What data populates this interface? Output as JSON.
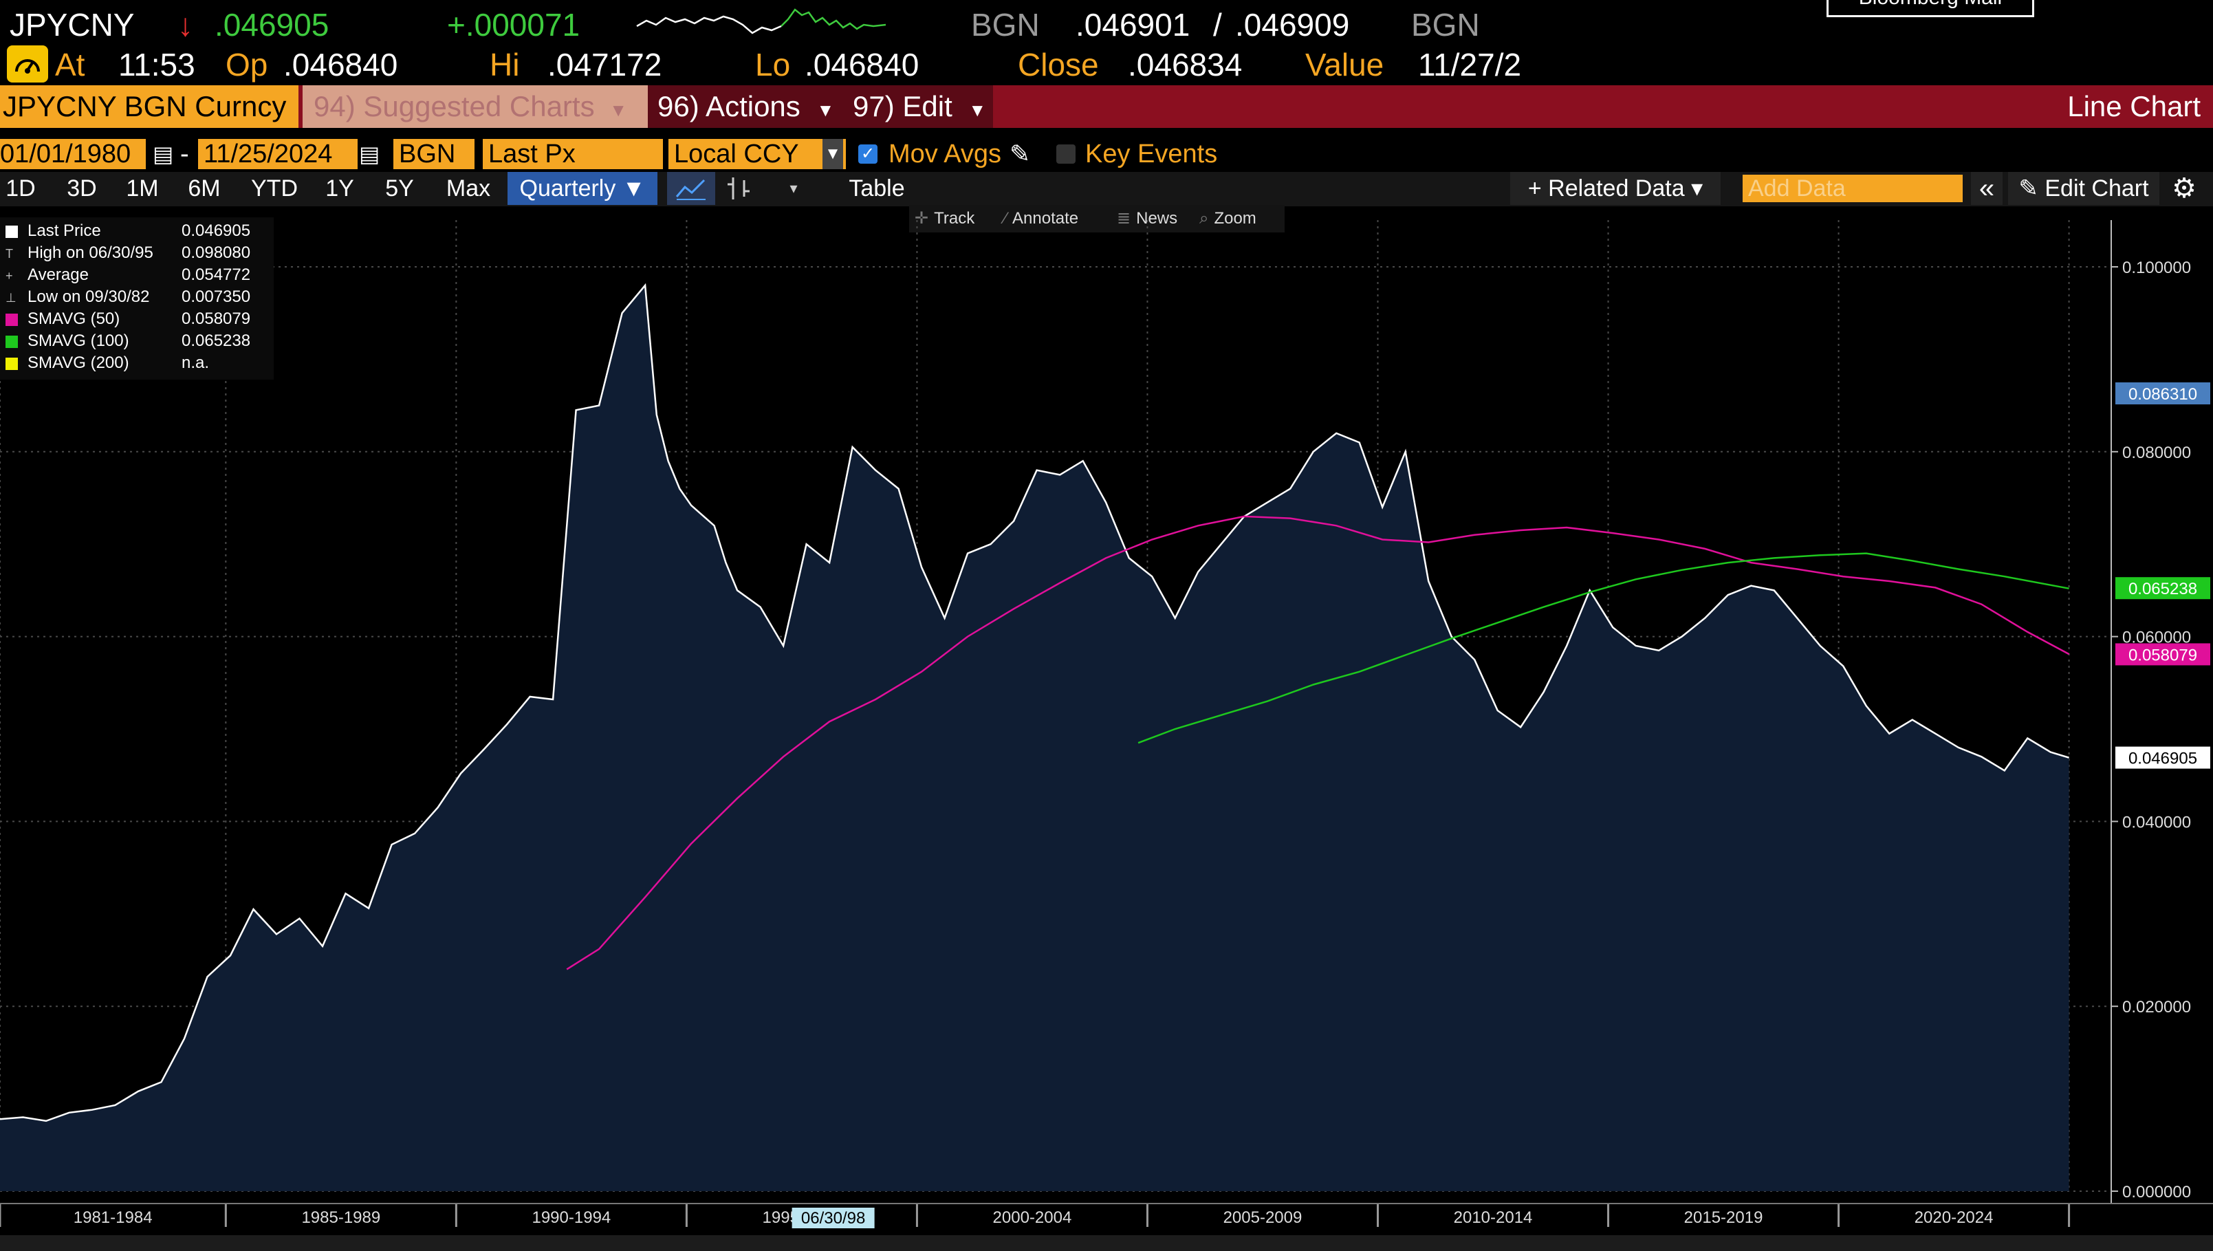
{
  "header": {
    "ticker": "JPYCNY",
    "arrow": "↓",
    "last": ".046905",
    "change": "+.000071",
    "source1": "BGN",
    "bid": ".046901",
    "slash": "/",
    "ask": ".046909",
    "source2": "BGN",
    "mail_button": "Bloomberg Mail",
    "at_label": "At",
    "time": "11:53",
    "op_label": "Op",
    "op": ".046840",
    "hi_label": "Hi",
    "hi": ".047172",
    "lo_label": "Lo",
    "lo": ".046840",
    "close_label": "Close",
    "close": ".046834",
    "value_label": "Value",
    "value": "11/27/2"
  },
  "menubar": {
    "security": "JPYCNY BGN Curncy",
    "suggested": "94) Suggested Charts",
    "actions": "96) Actions",
    "edit": "97) Edit",
    "chart_type": "Line Chart"
  },
  "settings": {
    "start_date": "01/01/1980",
    "dash": "-",
    "end_date": "11/25/2024",
    "source": "BGN",
    "field": "Last Px",
    "currency": "Local CCY",
    "mov_avgs_label": "Mov Avgs",
    "key_events_label": "Key Events"
  },
  "toolbar": {
    "periods": [
      "1D",
      "3D",
      "1M",
      "6M",
      "YTD",
      "1Y",
      "5Y",
      "Max"
    ],
    "frequency": "Quarterly ▼",
    "table": "Table",
    "related_data": "+ Related Data ▾",
    "add_data_placeholder": "Add Data",
    "edit_chart": "Edit Chart",
    "track": "Track",
    "annotate": "Annotate",
    "news": "News",
    "zoom": "Zoom"
  },
  "legend": [
    {
      "label": "Last Price",
      "value": "0.046905",
      "color": "#ffffff"
    },
    {
      "label": "High on 06/30/95",
      "value": "0.098080",
      "color": "#ffffff"
    },
    {
      "label": "Average",
      "value": "0.054772",
      "color": "#ffffff"
    },
    {
      "label": "Low on 09/30/82",
      "value": "0.007350",
      "color": "#ffffff"
    },
    {
      "label": "SMAVG (50)",
      "value": "0.058079",
      "color": "#e0109a"
    },
    {
      "label": "SMAVG (100)",
      "value": "0.065238",
      "color": "#1ec81e"
    },
    {
      "label": "SMAVG (200)",
      "value": "n.a.",
      "color": "#f0f000"
    }
  ],
  "chart_data": {
    "type": "area",
    "title": "",
    "xlabel": "",
    "ylabel": "",
    "ylim": [
      0,
      0.1
    ],
    "yticks": [
      "0.000000",
      "0.020000",
      "0.040000",
      "0.060000",
      "0.080000",
      "0.100000"
    ],
    "xticks": [
      "1981-1984",
      "1985-1989",
      "1990-1994",
      "1995-1999",
      "2000-2004",
      "2005-2009",
      "2010-2014",
      "2015-2019",
      "2020-2024"
    ],
    "xrange": [
      1980.0,
      2025.1
    ],
    "cursor_label": "06/30/98",
    "badges": [
      {
        "value": "0.086310",
        "color": "#4a7fbf"
      },
      {
        "value": "0.065238",
        "color": "#1ec81e"
      },
      {
        "value": "0.058079",
        "color": "#e0109a"
      },
      {
        "value": "0.046905",
        "color": "#ffffff"
      }
    ],
    "series": [
      {
        "name": "Last Price",
        "color": "#ffffff",
        "x": [
          1980.0,
          1980.5,
          1981.0,
          1981.5,
          1982.0,
          1982.5,
          1983.0,
          1983.5,
          1984.0,
          1984.5,
          1985.0,
          1985.5,
          1986.0,
          1986.5,
          1987.0,
          1987.5,
          1988.0,
          1988.5,
          1989.0,
          1989.5,
          1990.0,
          1990.5,
          1991.0,
          1991.5,
          1992.0,
          1992.5,
          1993.0,
          1993.5,
          1994.0,
          1994.25,
          1994.5,
          1994.75,
          1995.0,
          1995.5,
          1995.75,
          1996.0,
          1996.5,
          1997.0,
          1997.5,
          1998.0,
          1998.5,
          1999.0,
          1999.5,
          2000.0,
          2000.5,
          2001.0,
          2001.5,
          2002.0,
          2002.5,
          2003.0,
          2003.5,
          2004.0,
          2004.5,
          2005.0,
          2005.5,
          2006.0,
          2006.5,
          2007.0,
          2007.5,
          2008.0,
          2008.5,
          2009.0,
          2009.5,
          2010.0,
          2010.5,
          2011.0,
          2011.5,
          2012.0,
          2012.5,
          2013.0,
          2013.5,
          2014.0,
          2014.5,
          2015.0,
          2015.5,
          2016.0,
          2016.5,
          2017.0,
          2017.5,
          2018.0,
          2018.5,
          2019.0,
          2019.5,
          2020.0,
          2020.5,
          2021.0,
          2021.5,
          2022.0,
          2022.5,
          2023.0,
          2023.5,
          2024.0,
          2024.5,
          2024.9
        ],
        "y": [
          0.0078,
          0.008,
          0.0076,
          0.0085,
          0.0088,
          0.0093,
          0.0108,
          0.0118,
          0.0165,
          0.0232,
          0.0255,
          0.0305,
          0.0278,
          0.0295,
          0.0265,
          0.0322,
          0.0306,
          0.0375,
          0.0387,
          0.0415,
          0.0452,
          0.0478,
          0.0505,
          0.0535,
          0.0532,
          0.0845,
          0.085,
          0.095,
          0.098,
          0.084,
          0.079,
          0.076,
          0.0742,
          0.072,
          0.068,
          0.065,
          0.0632,
          0.059,
          0.07,
          0.068,
          0.0805,
          0.078,
          0.076,
          0.0675,
          0.062,
          0.069,
          0.07,
          0.0725,
          0.078,
          0.0775,
          0.079,
          0.0745,
          0.0685,
          0.0665,
          0.062,
          0.067,
          0.07,
          0.073,
          0.0745,
          0.076,
          0.08,
          0.082,
          0.081,
          0.074,
          0.08,
          0.066,
          0.06,
          0.0575,
          0.052,
          0.0502,
          0.054,
          0.059,
          0.065,
          0.061,
          0.059,
          0.0585,
          0.06,
          0.062,
          0.0645,
          0.0655,
          0.065,
          0.062,
          0.059,
          0.0568,
          0.0525,
          0.0495,
          0.051,
          0.0495,
          0.048,
          0.047,
          0.0455,
          0.049,
          0.0475,
          0.0469
        ]
      },
      {
        "name": "SMAVG (50)",
        "color": "#e0109a",
        "x": [
          1992.3,
          1993.0,
          1994.0,
          1995.0,
          1996.0,
          1997.0,
          1998.0,
          1999.0,
          2000.0,
          2001.0,
          2002.0,
          2003.0,
          2004.0,
          2005.0,
          2006.0,
          2007.0,
          2008.0,
          2009.0,
          2010.0,
          2011.0,
          2012.0,
          2013.0,
          2014.0,
          2015.0,
          2016.0,
          2017.0,
          2018.0,
          2019.0,
          2020.0,
          2021.0,
          2022.0,
          2023.0,
          2024.0,
          2024.9
        ],
        "y": [
          0.024,
          0.0262,
          0.0318,
          0.0376,
          0.0425,
          0.047,
          0.0508,
          0.0532,
          0.0562,
          0.06,
          0.063,
          0.0658,
          0.0685,
          0.0705,
          0.072,
          0.073,
          0.0728,
          0.072,
          0.0705,
          0.0702,
          0.071,
          0.0715,
          0.0718,
          0.0712,
          0.0705,
          0.0695,
          0.068,
          0.0673,
          0.0665,
          0.066,
          0.0653,
          0.0635,
          0.0605,
          0.0581
        ]
      },
      {
        "name": "SMAVG (100)",
        "color": "#1ec81e",
        "x": [
          2004.7,
          2005.5,
          2006.5,
          2007.5,
          2008.5,
          2009.5,
          2010.5,
          2011.5,
          2012.5,
          2013.5,
          2014.5,
          2015.5,
          2016.5,
          2017.5,
          2018.5,
          2019.5,
          2020.5,
          2021.5,
          2022.5,
          2023.5,
          2024.9
        ],
        "y": [
          0.0485,
          0.05,
          0.0515,
          0.053,
          0.0548,
          0.0562,
          0.058,
          0.0598,
          0.0615,
          0.0632,
          0.0648,
          0.0662,
          0.0672,
          0.068,
          0.0685,
          0.0688,
          0.069,
          0.0682,
          0.0673,
          0.0665,
          0.0652
        ]
      }
    ]
  }
}
